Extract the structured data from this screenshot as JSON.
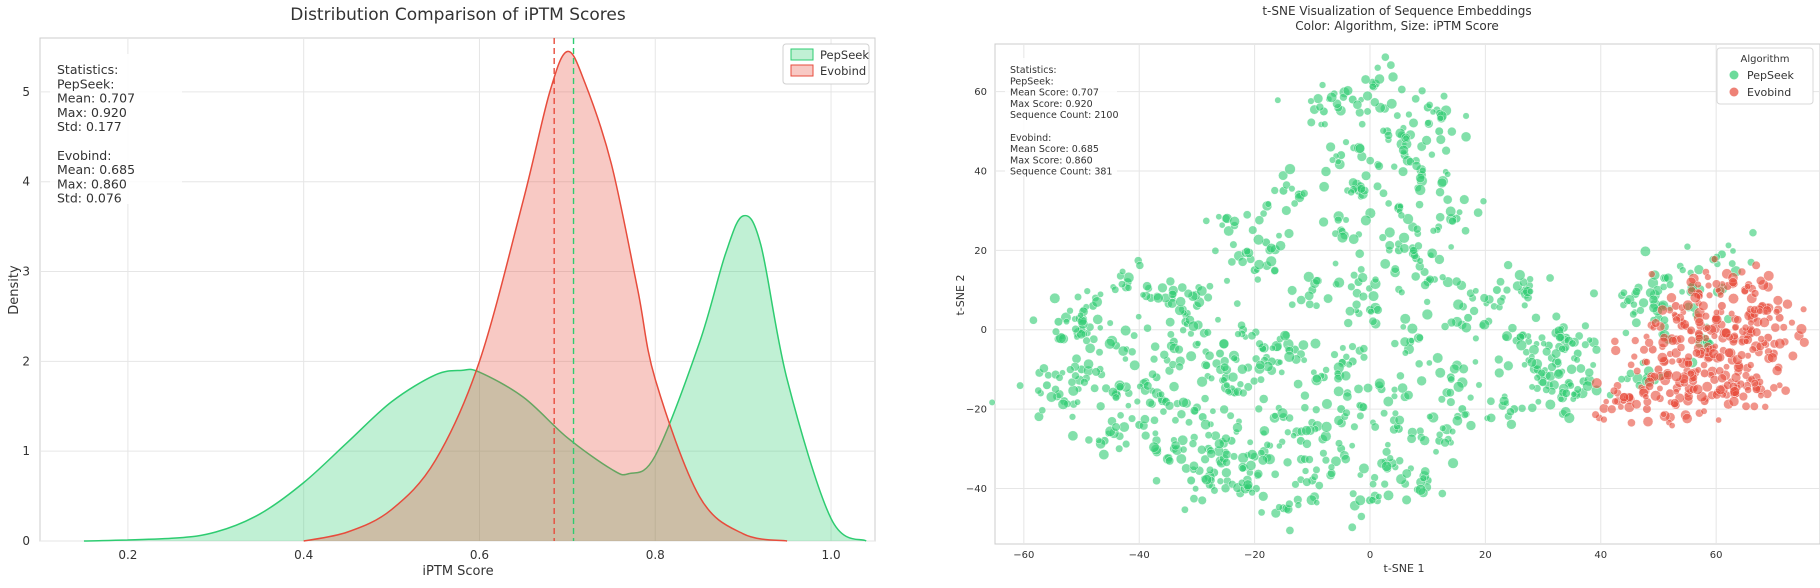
{
  "colors": {
    "pepseek": "#2ecc71",
    "evobind": "#e74c3c",
    "grid": "#e6e6e6",
    "axis": "#cccccc"
  },
  "chart_data": [
    {
      "type": "area",
      "title": "Distribution Comparison of iPTM Scores",
      "xlabel": "iPTM Score",
      "ylabel": "Density",
      "xlim": [
        0.1,
        1.05
      ],
      "ylim": [
        0,
        5.6
      ],
      "xticks": [
        "0.2",
        "0.4",
        "0.6",
        "0.8",
        "1.0"
      ],
      "yticks": [
        "0",
        "1",
        "2",
        "3",
        "4",
        "5"
      ],
      "grid": true,
      "legend_position": "top-right",
      "series": [
        {
          "name": "PepSeek",
          "x": [
            0.15,
            0.25,
            0.3,
            0.35,
            0.4,
            0.45,
            0.5,
            0.55,
            0.58,
            0.6,
            0.65,
            0.7,
            0.75,
            0.77,
            0.8,
            0.85,
            0.88,
            0.9,
            0.92,
            0.95,
            1.0,
            1.04
          ],
          "values": [
            0.0,
            0.03,
            0.1,
            0.3,
            0.65,
            1.1,
            1.55,
            1.85,
            1.9,
            1.88,
            1.6,
            1.15,
            0.8,
            0.75,
            0.95,
            2.2,
            3.2,
            3.62,
            3.3,
            1.8,
            0.25,
            0.0
          ]
        },
        {
          "name": "Evobind",
          "x": [
            0.4,
            0.45,
            0.5,
            0.55,
            0.6,
            0.65,
            0.68,
            0.7,
            0.72,
            0.75,
            0.78,
            0.8,
            0.85,
            0.9,
            0.95
          ],
          "values": [
            0.0,
            0.1,
            0.35,
            0.9,
            2.0,
            3.8,
            5.0,
            5.45,
            5.1,
            4.2,
            2.8,
            1.8,
            0.5,
            0.08,
            0.0
          ]
        }
      ],
      "vlines": [
        {
          "series": "Evobind",
          "x": 0.685
        },
        {
          "series": "PepSeek",
          "x": 0.707
        }
      ],
      "stats_lines": [
        "Statistics:",
        "PepSeek:",
        "Mean: 0.707",
        "Max: 0.920",
        "Std: 0.177",
        "",
        "Evobind:",
        "Mean: 0.685",
        "Max: 0.860",
        "Std: 0.076"
      ]
    },
    {
      "type": "scatter",
      "title": "t-SNE Visualization of Sequence Embeddings",
      "subtitle": "Color: Algorithm, Size: iPTM Score",
      "xlabel": "t-SNE 1",
      "ylabel": "t-SNE 2",
      "xlim": [
        -65,
        78
      ],
      "ylim": [
        -54,
        72
      ],
      "xticks": [
        "−60",
        "−40",
        "−20",
        "0",
        "20",
        "40",
        "60"
      ],
      "yticks": [
        "−40",
        "−20",
        "0",
        "20",
        "40",
        "60"
      ],
      "grid": true,
      "legend_title": "Algorithm",
      "legend_position": "top-right",
      "series": [
        {
          "name": "PepSeek",
          "count": 2100,
          "points": [
            [
              -50,
              -10
            ],
            [
              -44,
              -4
            ],
            [
              -37,
              -12
            ],
            [
              -34,
              -3
            ],
            [
              -30,
              6
            ],
            [
              -42,
              12
            ],
            [
              -48,
              6
            ],
            [
              -53,
              -18
            ],
            [
              -40,
              -24
            ],
            [
              -34,
              -30
            ],
            [
              -27,
              -36
            ],
            [
              -36,
              -18
            ],
            [
              -29,
              -22
            ],
            [
              -24,
              -28
            ],
            [
              -32,
              2
            ],
            [
              -26,
              -6
            ],
            [
              -50,
              0
            ],
            [
              -56,
              -14
            ],
            [
              -46,
              -28
            ],
            [
              -31,
              -38
            ],
            [
              -38,
              8
            ],
            [
              -44,
              -16
            ],
            [
              -25,
              -12
            ],
            [
              -21,
              -40
            ],
            [
              -28,
              -30
            ],
            [
              -54,
              2
            ],
            [
              -5,
              44
            ],
            [
              3,
              50
            ],
            [
              10,
              56
            ],
            [
              -3,
              58
            ],
            [
              6,
              44
            ],
            [
              -8,
              55
            ],
            [
              1,
              62
            ],
            [
              12,
              50
            ],
            [
              9,
              39
            ],
            [
              5,
              31
            ],
            [
              -2,
              35
            ],
            [
              -25,
              28
            ],
            [
              -15,
              35
            ],
            [
              -5,
              25
            ],
            [
              5,
              20
            ],
            [
              15,
              28
            ],
            [
              -20,
              15
            ],
            [
              -10,
              10
            ],
            [
              0,
              5
            ],
            [
              10,
              12
            ],
            [
              17,
              3
            ],
            [
              -22,
              0
            ],
            [
              -13,
              -5
            ],
            [
              -3,
              -8
            ],
            [
              7,
              -3
            ],
            [
              14,
              -12
            ],
            [
              -24,
              -15
            ],
            [
              -15,
              -22
            ],
            [
              -5,
              -20
            ],
            [
              5,
              -25
            ],
            [
              12,
              -28
            ],
            [
              -20,
              -32
            ],
            [
              -10,
              -38
            ],
            [
              0,
              -43
            ],
            [
              10,
              -38
            ],
            [
              -15,
              -45
            ],
            [
              -5,
              -30
            ],
            [
              2,
              -15
            ],
            [
              -8,
              -12
            ],
            [
              8,
              18
            ],
            [
              -18,
              22
            ],
            [
              -12,
              -28
            ],
            [
              -2,
              12
            ],
            [
              3,
              -35
            ],
            [
              -17,
              -8
            ],
            [
              16,
              -20
            ],
            [
              26,
              -2
            ],
            [
              31,
              -4
            ],
            [
              34,
              -2
            ],
            [
              37,
              -13
            ],
            [
              31,
              -14
            ],
            [
              34,
              -16
            ],
            [
              25,
              -20
            ],
            [
              27,
              10
            ],
            [
              22,
              10
            ],
            [
              29,
              -10
            ],
            [
              36,
              -6
            ],
            [
              46,
              9
            ],
            [
              51,
              13
            ],
            [
              56,
              11
            ],
            [
              50,
              3
            ],
            [
              57,
              -2
            ],
            [
              61,
              19
            ],
            [
              48,
              -12
            ]
          ]
        },
        {
          "name": "Evobind",
          "count": 381,
          "points": [
            [
              43,
              -18
            ],
            [
              48,
              -20
            ],
            [
              53,
              -19
            ],
            [
              58,
              -18
            ],
            [
              63,
              -16
            ],
            [
              67,
              -12
            ],
            [
              70,
              -6
            ],
            [
              71,
              3
            ],
            [
              68,
              6
            ],
            [
              65,
              10
            ],
            [
              62,
              11
            ],
            [
              57,
              9
            ],
            [
              53,
              6
            ],
            [
              51,
              -2
            ],
            [
              55,
              -8
            ],
            [
              59,
              -5
            ],
            [
              63,
              -3
            ],
            [
              66,
              0
            ],
            [
              60,
              3
            ],
            [
              56,
              -13
            ],
            [
              50,
              -10
            ],
            [
              64,
              -9
            ],
            [
              69,
              -2
            ],
            [
              61,
              6
            ],
            [
              45,
              -17
            ],
            [
              52,
              -16
            ],
            [
              58,
              -11
            ],
            [
              54,
              1
            ],
            [
              67,
              -15
            ],
            [
              62,
              -14
            ],
            [
              49,
              -5
            ],
            [
              57,
              -1
            ]
          ]
        }
      ],
      "stats_lines": [
        "Statistics:",
        "PepSeek:",
        "Mean Score: 0.707",
        "Max Score: 0.920",
        "Sequence Count: 2100",
        "",
        "Evobind:",
        "Mean Score: 0.685",
        "Max Score: 0.860",
        "Sequence Count: 381"
      ]
    }
  ]
}
